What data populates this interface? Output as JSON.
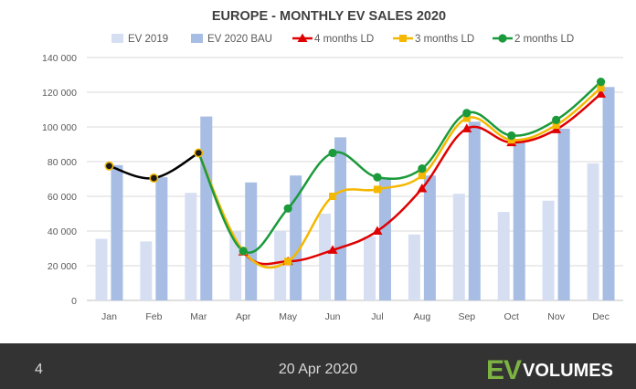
{
  "chart_data": {
    "type": "bar",
    "title": "EUROPE - MONTHLY EV SALES 2020",
    "xlabel": "",
    "ylabel": "",
    "categories": [
      "Jan",
      "Feb",
      "Mar",
      "Apr",
      "May",
      "Jun",
      "Jul",
      "Aug",
      "Sep",
      "Oct",
      "Nov",
      "Dec"
    ],
    "ylim": [
      0,
      140000
    ],
    "yticks": [
      0,
      20000,
      40000,
      60000,
      80000,
      100000,
      120000,
      140000
    ],
    "ytick_labels": [
      "0",
      "20 000",
      "40 000",
      "60 000",
      "80 000",
      "100 000",
      "120 000",
      "140 000"
    ],
    "grid": true,
    "legend_position": "top",
    "series": [
      {
        "name": "EV 2019",
        "kind": "bar",
        "color": "#d6dff2",
        "values": [
          35500,
          34000,
          62000,
          40000,
          40000,
          50000,
          37000,
          38000,
          61500,
          51000,
          57500,
          79000
        ]
      },
      {
        "name": "EV 2020 BAU",
        "kind": "bar",
        "color": "#a7bde3",
        "values": [
          78000,
          71000,
          106000,
          68000,
          72000,
          94000,
          70000,
          72000,
          103000,
          91000,
          99000,
          123000
        ]
      },
      {
        "name": "4 months LD",
        "kind": "line",
        "color": "#e00000",
        "marker": "triangle",
        "values": [
          77500,
          70500,
          85000,
          28000,
          22500,
          29000,
          40000,
          64500,
          99000,
          91000,
          98500,
          119000
        ]
      },
      {
        "name": "3 months LD",
        "kind": "line",
        "color": "#f5b800",
        "marker": "square",
        "values": [
          77500,
          70500,
          85000,
          28500,
          22500,
          60000,
          64000,
          72000,
          105000,
          92500,
          101000,
          122500
        ]
      },
      {
        "name": "2 months LD",
        "kind": "line",
        "color": "#1a9a3a",
        "marker": "circle",
        "values": [
          77500,
          70500,
          85000,
          28500,
          53000,
          85000,
          71000,
          76000,
          108000,
          95000,
          104000,
          126000
        ]
      }
    ],
    "common_segment": {
      "color": "#000000",
      "until_index": 2
    }
  },
  "footer": {
    "page_number": "4",
    "date": "20 Apr 2020",
    "brand_ev": "EV",
    "brand_volumes": "VOLUMES"
  },
  "colors": {
    "footer_bg": "#333333",
    "brand_green": "#7cb342"
  }
}
